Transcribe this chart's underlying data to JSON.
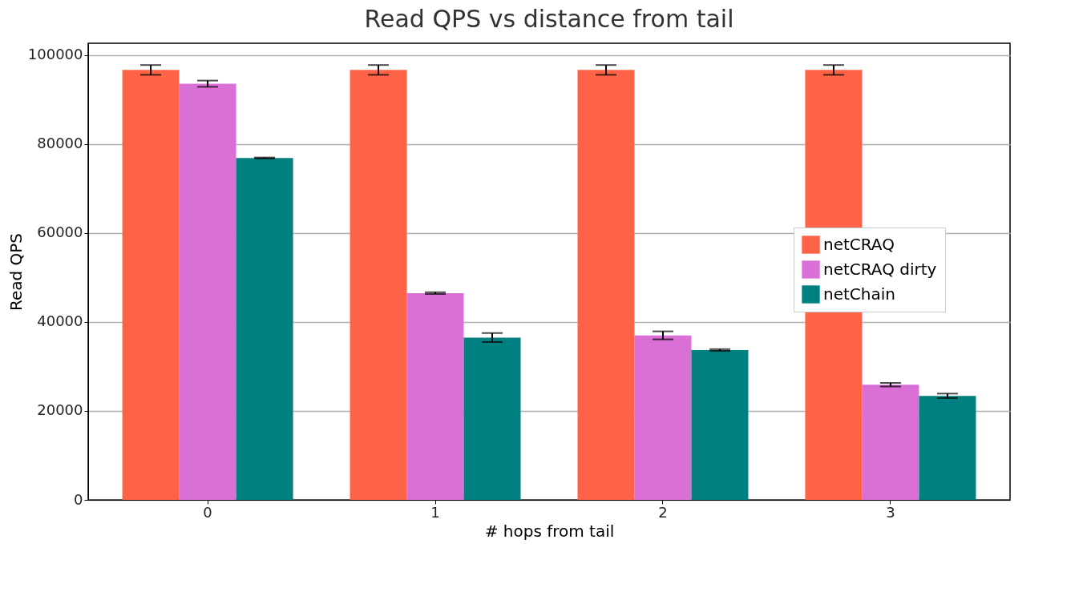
{
  "chart_data": {
    "type": "bar",
    "title": "Read QPS vs distance from tail",
    "xlabel": "# hops from tail",
    "ylabel": "Read QPS",
    "categories": [
      "0",
      "1",
      "2",
      "3"
    ],
    "series": [
      {
        "name": "netCRAQ",
        "color": "#ff6347",
        "values": [
          96700,
          96700,
          96700,
          96700
        ],
        "errors": [
          1100,
          1100,
          1100,
          1100
        ]
      },
      {
        "name": "netCRAQ dirty",
        "color": "#da70d6",
        "values": [
          93600,
          46500,
          37000,
          25900
        ],
        "errors": [
          700,
          200,
          900,
          400
        ]
      },
      {
        "name": "netChain",
        "color": "#008080",
        "values": [
          76900,
          36500,
          33700,
          23400
        ],
        "errors": [
          100,
          1000,
          200,
          500
        ]
      }
    ],
    "ylim": [
      0,
      102700
    ],
    "yticks": [
      0,
      20000,
      40000,
      60000,
      80000,
      100000
    ],
    "grid": "y",
    "legend": "right"
  }
}
